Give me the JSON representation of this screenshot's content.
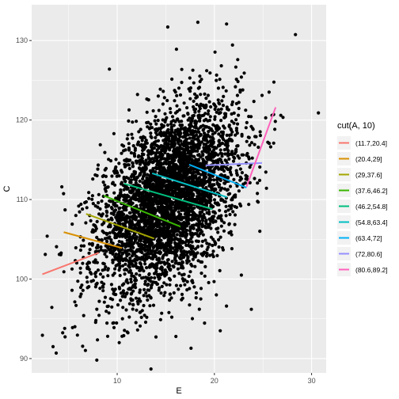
{
  "chart_data": {
    "type": "scatter",
    "xlabel": "E",
    "ylabel": "C",
    "xlim": [
      1.2,
      31.5
    ],
    "ylim": [
      88.2,
      134.5
    ],
    "x_ticks": [
      10,
      20,
      30
    ],
    "y_ticks": [
      90,
      100,
      110,
      120,
      130
    ],
    "x_tick_labels": [
      "10",
      "20",
      "30"
    ],
    "y_tick_labels": [
      "90",
      "100",
      "110",
      "120",
      "130"
    ],
    "grid": true,
    "point_color": "#000000",
    "scatter_cloud": {
      "center_x": 15.3,
      "center_y": 110,
      "sd_x": 3.6,
      "sd_y": 5.8,
      "correlation": 0.45,
      "count": 4200
    },
    "scatter_points_outliers": [
      {
        "x": 2.8,
        "y": 105.4
      },
      {
        "x": 3.4,
        "y": 91.5
      },
      {
        "x": 4.6,
        "y": 93.8
      },
      {
        "x": 5.4,
        "y": 93.9
      },
      {
        "x": 4.3,
        "y": 111.6
      },
      {
        "x": 7.9,
        "y": 89.8
      },
      {
        "x": 9.2,
        "y": 126.4
      },
      {
        "x": 10.5,
        "y": 92.8
      },
      {
        "x": 15.2,
        "y": 131.7
      },
      {
        "x": 18.3,
        "y": 132.3
      },
      {
        "x": 16.1,
        "y": 128.9
      },
      {
        "x": 22.4,
        "y": 127.6
      },
      {
        "x": 24.9,
        "y": 123.1
      },
      {
        "x": 26.1,
        "y": 120.7
      },
      {
        "x": 30.7,
        "y": 120.9
      },
      {
        "x": 17.6,
        "y": 91.3
      },
      {
        "x": 20.6,
        "y": 93.5
      },
      {
        "x": 23.8,
        "y": 96.2
      },
      {
        "x": 2.6,
        "y": 103.1
      },
      {
        "x": 6.2,
        "y": 97.8
      },
      {
        "x": 12.1,
        "y": 93.6
      },
      {
        "x": 25.5,
        "y": 117.2
      }
    ],
    "legend": {
      "title": "cut(A, 10)",
      "position": "right",
      "entries": [
        {
          "label": "(11.7,20.4]",
          "color": "#F8766D"
        },
        {
          "label": "(20.4,29]",
          "color": "#D89000"
        },
        {
          "label": "(29,37.6]",
          "color": "#A3A500"
        },
        {
          "label": "(37.6,46.2]",
          "color": "#39B600"
        },
        {
          "label": "(46.2,54.8]",
          "color": "#00BF7D"
        },
        {
          "label": "(54.8,63.4]",
          "color": "#00BFC4"
        },
        {
          "label": "(63.4,72]",
          "color": "#00B0F6"
        },
        {
          "label": "(72,80.6]",
          "color": "#9590FF"
        },
        {
          "label": "(80.6,89.2]",
          "color": "#FF62BC"
        }
      ]
    },
    "series": [
      {
        "name": "(11.7,20.4]",
        "color": "#F8766D",
        "x": [
          2.3,
          8.1
        ],
        "y": [
          100.6,
          103.3
        ]
      },
      {
        "name": "(20.4,29]",
        "color": "#D89000",
        "x": [
          4.5,
          10.5
        ],
        "y": [
          105.9,
          103.9
        ]
      },
      {
        "name": "(29,37.6]",
        "color": "#A3A500",
        "x": [
          6.8,
          13.8
        ],
        "y": [
          108.2,
          105.1
        ]
      },
      {
        "name": "(37.6,46.2]",
        "color": "#39B600",
        "x": [
          8.6,
          16.5
        ],
        "y": [
          110.5,
          106.6
        ]
      },
      {
        "name": "(46.2,54.8]",
        "color": "#00BF7D",
        "x": [
          10.7,
          19.8
        ],
        "y": [
          112.0,
          108.8
        ]
      },
      {
        "name": "(54.8,63.4]",
        "color": "#00BFC4",
        "x": [
          13.6,
          21.3
        ],
        "y": [
          113.3,
          110.3
        ]
      },
      {
        "name": "(63.4,72]",
        "color": "#00B0F6",
        "x": [
          17.4,
          23.3
        ],
        "y": [
          114.4,
          111.5
        ]
      },
      {
        "name": "(72,80.6]",
        "color": "#9590FF",
        "x": [
          19.1,
          24.9
        ],
        "y": [
          114.3,
          114.6
        ]
      },
      {
        "name": "(80.6,89.2]",
        "color": "#FF62BC",
        "x": [
          23.3,
          26.3
        ],
        "y": [
          111.6,
          121.6
        ]
      }
    ]
  }
}
